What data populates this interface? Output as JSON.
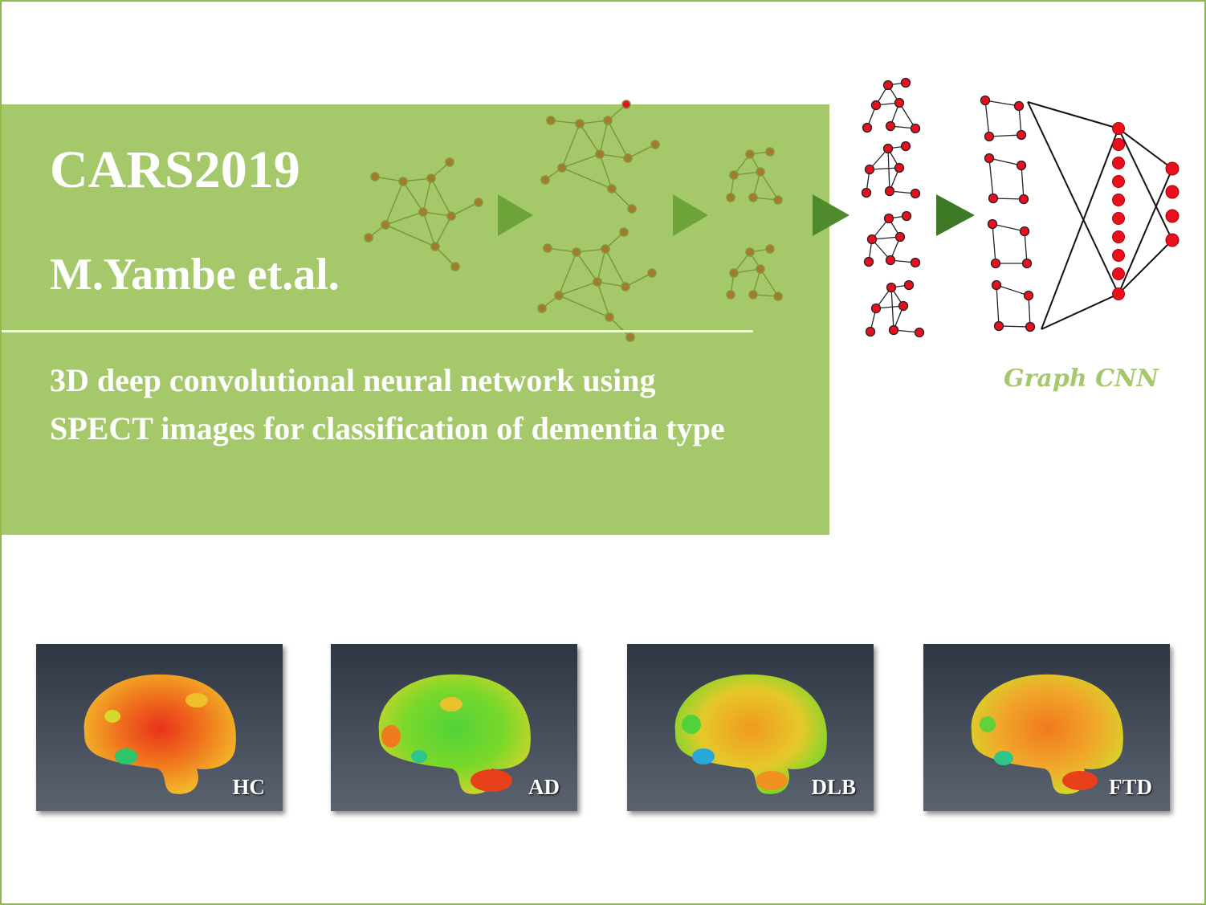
{
  "title": "CARS2019",
  "authors": "M.Yambe et.al.",
  "description": "3D deep convolutional neural network using SPECT images for classification of dementia type",
  "network_label": "Graph CNN",
  "brain_images": [
    {
      "label": "HC"
    },
    {
      "label": "AD"
    },
    {
      "label": "DLB"
    },
    {
      "label": "FTD"
    }
  ],
  "colors": {
    "banner": "#a5c96a",
    "border": "#8fba4a",
    "graph_node": "#a8792b",
    "graph_edge": "#7f9a3c",
    "arrow": "#6ea33a",
    "gcn_node": "#e8101e"
  }
}
